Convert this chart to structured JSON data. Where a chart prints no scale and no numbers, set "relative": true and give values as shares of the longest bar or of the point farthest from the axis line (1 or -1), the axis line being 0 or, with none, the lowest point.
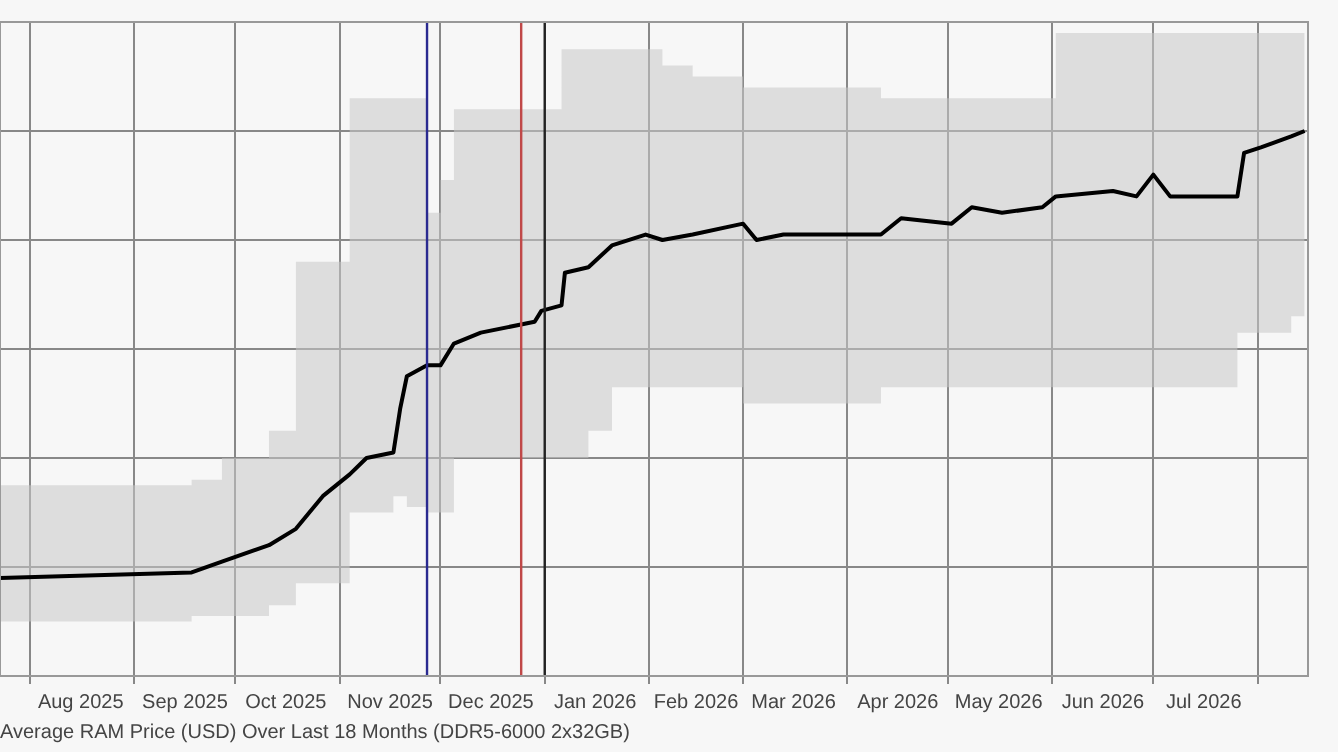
{
  "chart_data": {
    "type": "line",
    "title": "Average RAM Price (USD) Over Last 18 Months (DDR5-6000 2x32GB)",
    "relative": true,
    "grid": true,
    "legend": false,
    "marker": "none",
    "line_style": "solid",
    "x": [
      "2025-07-23",
      "2025-09-18",
      "2025-09-27",
      "2025-10-11",
      "2025-10-19",
      "2025-10-27",
      "2025-11-04",
      "2025-11-09",
      "2025-11-17",
      "2025-11-19",
      "2025-11-21",
      "2025-11-27",
      "2025-12-01",
      "2025-12-05",
      "2025-12-13",
      "2025-12-29",
      "2025-12-31",
      "2026-01-06",
      "2026-01-07",
      "2026-01-14",
      "2026-01-21",
      "2026-01-31",
      "2026-02-05",
      "2026-02-14",
      "2026-03-01",
      "2026-03-05",
      "2026-03-13",
      "2026-04-11",
      "2026-04-17",
      "2026-05-02",
      "2026-05-08",
      "2026-05-17",
      "2026-05-29",
      "2026-06-02",
      "2026-06-19",
      "2026-06-26",
      "2026-07-01",
      "2026-07-06",
      "2026-07-15",
      "2026-07-26",
      "2026-07-28",
      "2026-08-02",
      "2026-08-11",
      "2026-08-15"
    ],
    "xlim": [
      "2025-07-23",
      "2026-08-16"
    ],
    "xticks": [
      {
        "value": "2025-08-01",
        "label": null
      },
      {
        "value": "2025-08-16",
        "label": "Aug 2025"
      },
      {
        "value": "2025-09-01",
        "label": null
      },
      {
        "value": "2025-09-16",
        "label": "Sep 2025"
      },
      {
        "value": "2025-10-01",
        "label": null
      },
      {
        "value": "2025-10-16",
        "label": "Oct 2025"
      },
      {
        "value": "2025-11-01",
        "label": null
      },
      {
        "value": "2025-11-16",
        "label": "Nov 2025"
      },
      {
        "value": "2025-12-01",
        "label": null
      },
      {
        "value": "2025-12-16",
        "label": "Dec 2025"
      },
      {
        "value": "2026-01-01",
        "label": null
      },
      {
        "value": "2026-01-16",
        "label": "Jan 2026"
      },
      {
        "value": "2026-02-01",
        "label": null
      },
      {
        "value": "2026-02-15",
        "label": "Feb 2026"
      },
      {
        "value": "2026-03-01",
        "label": null
      },
      {
        "value": "2026-03-16",
        "label": "Mar 2026"
      },
      {
        "value": "2026-04-01",
        "label": null
      },
      {
        "value": "2026-04-16",
        "label": "Apr 2026"
      },
      {
        "value": "2026-05-01",
        "label": null
      },
      {
        "value": "2026-05-16",
        "label": "May 2026"
      },
      {
        "value": "2026-06-01",
        "label": null
      },
      {
        "value": "2026-06-16",
        "label": "Jun 2026"
      },
      {
        "value": "2026-07-01",
        "label": null
      },
      {
        "value": "2026-07-16",
        "label": "Jul 2026"
      },
      {
        "value": "2026-08-01",
        "label": null
      }
    ],
    "series": [
      {
        "color": "#000000",
        "values": [
          0.18,
          0.19,
          0.21,
          0.24,
          0.27,
          0.33,
          0.37,
          0.4,
          0.41,
          0.49,
          0.55,
          0.57,
          0.57,
          0.61,
          0.63,
          0.65,
          0.67,
          0.68,
          0.74,
          0.75,
          0.79,
          0.81,
          0.8,
          0.81,
          0.83,
          0.8,
          0.81,
          0.81,
          0.84,
          0.83,
          0.86,
          0.85,
          0.86,
          0.88,
          0.89,
          0.88,
          0.92,
          0.88,
          0.88,
          0.88,
          0.96,
          0.97,
          0.99,
          1.0
        ],
        "lower": [
          0.1,
          0.11,
          0.11,
          0.13,
          0.17,
          0.17,
          0.3,
          0.3,
          0.33,
          0.33,
          0.31,
          0.3,
          0.3,
          0.4,
          0.4,
          0.4,
          0.4,
          0.4,
          0.4,
          0.45,
          0.53,
          0.53,
          0.53,
          0.53,
          0.5,
          0.5,
          0.5,
          0.53,
          0.53,
          0.53,
          0.53,
          0.53,
          0.53,
          0.53,
          0.53,
          0.53,
          0.53,
          0.53,
          0.53,
          0.63,
          0.63,
          0.63,
          0.66,
          0.66
        ],
        "upper": [
          0.35,
          0.36,
          0.4,
          0.45,
          0.76,
          0.76,
          1.06,
          1.06,
          1.06,
          1.06,
          1.06,
          0.85,
          0.91,
          1.04,
          1.04,
          1.04,
          1.04,
          1.15,
          1.15,
          1.15,
          1.15,
          1.15,
          1.12,
          1.1,
          1.08,
          1.08,
          1.08,
          1.06,
          1.06,
          1.06,
          1.06,
          1.06,
          1.06,
          1.18,
          1.18,
          1.18,
          1.18,
          1.18,
          1.18,
          1.18,
          1.18,
          1.18,
          1.18,
          1.18
        ]
      }
    ],
    "ref_lines": [
      {
        "axis": "x",
        "value": "2025-11-27",
        "color": "#2a2a90"
      },
      {
        "axis": "x",
        "value": "2025-12-25",
        "color": "#c04848"
      },
      {
        "axis": "x",
        "value": "2026-01-01",
        "color": "#222222"
      }
    ]
  }
}
